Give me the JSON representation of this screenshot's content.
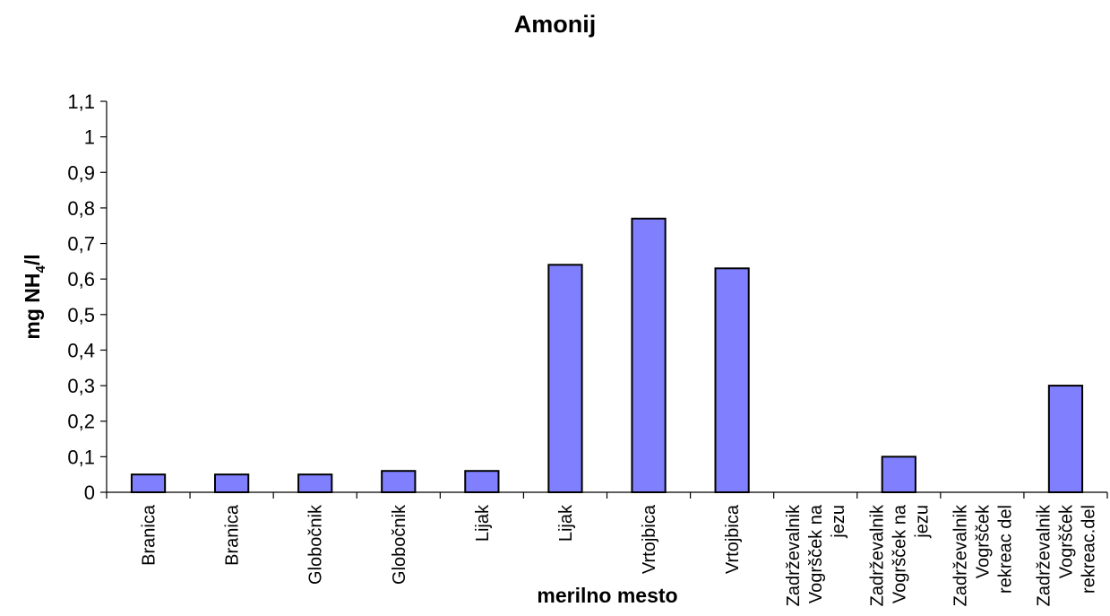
{
  "chart_data": {
    "type": "bar",
    "title": "Amonij",
    "xlabel": "merilno mesto",
    "ylabel_main": "mg NH",
    "ylabel_sub": "4",
    "ylabel_tail": "/l",
    "ylim": [
      0,
      1.1
    ],
    "yticks": [
      "0",
      "0,1",
      "0,2",
      "0,3",
      "0,4",
      "0,5",
      "0,6",
      "0,7",
      "0,8",
      "0,9",
      "1",
      "1,1"
    ],
    "categories": [
      [
        "Branica"
      ],
      [
        "Branica"
      ],
      [
        "Globočnik"
      ],
      [
        "Globočnik"
      ],
      [
        "Lijak"
      ],
      [
        "Lijak"
      ],
      [
        "Vrtojbica"
      ],
      [
        "Vrtojbica"
      ],
      [
        "Zadrževalnik",
        "Vogršček na",
        "jezu"
      ],
      [
        "Zadrževalnik",
        "Vogršček na",
        "jezu"
      ],
      [
        "Zadrževalnik",
        "Vogršček",
        "rekreac del"
      ],
      [
        "Zadrževalnik",
        "Vogršček",
        "rekreac.del"
      ]
    ],
    "values": [
      0.05,
      0.05,
      0.05,
      0.06,
      0.06,
      0.64,
      0.77,
      0.63,
      null,
      0.1,
      null,
      0.3
    ],
    "bar_color": "#8080FF",
    "grid": false,
    "legend": "none"
  }
}
